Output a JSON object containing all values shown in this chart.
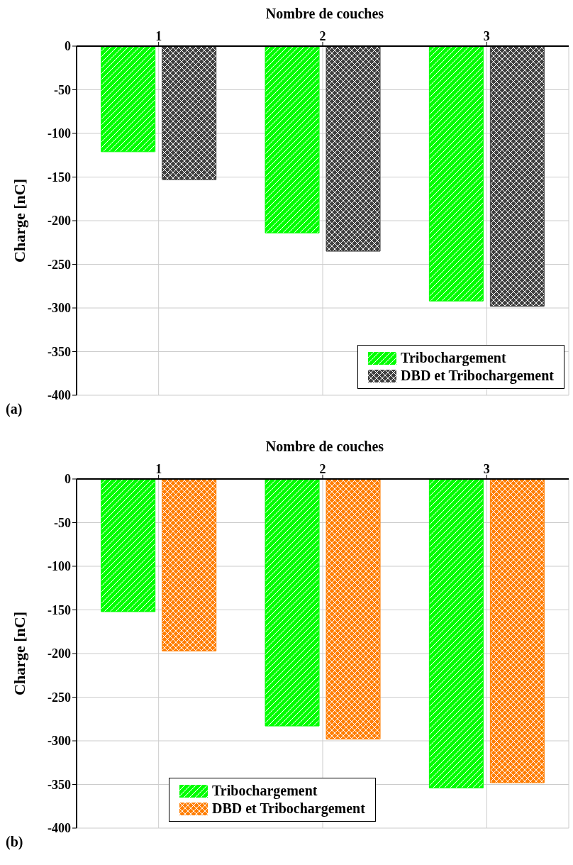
{
  "chart_data": [
    {
      "type": "bar",
      "xlabel": "Nombre de couches",
      "ylabel": "Charge [nC]",
      "categories": [
        "1",
        "2",
        "3"
      ],
      "series": [
        {
          "name": "Tribochargement",
          "color": "#00ff00",
          "values": [
            -121,
            -214,
            -292
          ]
        },
        {
          "name": "DBD et Tribochargement",
          "color": "#404040",
          "values": [
            -153,
            -235,
            -298
          ]
        }
      ],
      "ylim": [
        -400,
        0
      ],
      "yticks": [
        -400,
        -350,
        -300,
        -250,
        -200,
        -150,
        -100,
        -50,
        0
      ],
      "grid": true,
      "legend": "bottom right",
      "annotations": [
        "(a)"
      ]
    },
    {
      "type": "bar",
      "xlabel": "Nombre de couches",
      "ylabel": "Charge [nC]",
      "categories": [
        "1",
        "2",
        "3"
      ],
      "series": [
        {
          "name": "Tribochargement",
          "color": "#00ff00",
          "values": [
            -152,
            -283,
            -354
          ]
        },
        {
          "name": "DBD et Tribochargement",
          "color": "#ff7f00",
          "values": [
            -197,
            -298,
            -348
          ]
        }
      ],
      "ylim": [
        -400,
        0
      ],
      "yticks": [
        -400,
        -350,
        -300,
        -250,
        -200,
        -150,
        -100,
        -50,
        0
      ],
      "grid": true,
      "legend": "bottom",
      "annotations": [
        "(b)"
      ]
    }
  ]
}
